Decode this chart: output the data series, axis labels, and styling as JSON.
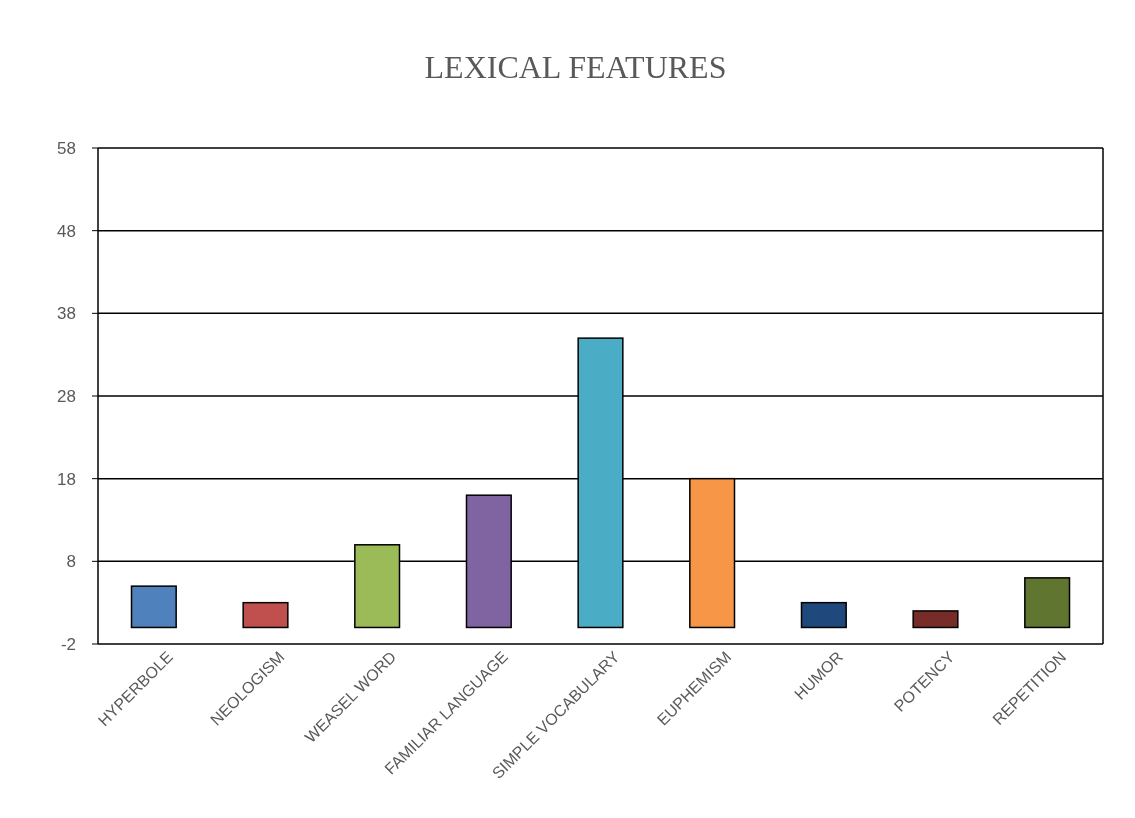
{
  "chart_data": {
    "type": "bar",
    "title": "LEXICAL FEATURES",
    "categories": [
      "HYPERBOLE",
      "NEOLOGISM",
      "WEASEL WORD",
      "FAMILIAR LANGUAGE",
      "SIMPLE VOCABULARY",
      "EUPHEMISM",
      "HUMOR",
      "POTENCY",
      "REPETITION"
    ],
    "values": [
      5,
      3,
      10,
      16,
      35,
      18,
      3,
      2,
      6
    ],
    "colors": [
      "#4f81bd",
      "#c0504d",
      "#9bbb59",
      "#8064a2",
      "#4bacc6",
      "#f79646",
      "#1f497d",
      "#772c2a",
      "#5f7530"
    ],
    "ylim": [
      -2,
      58
    ],
    "yticks": [
      -2,
      8,
      18,
      28,
      38,
      48,
      58
    ],
    "grid": "y"
  }
}
